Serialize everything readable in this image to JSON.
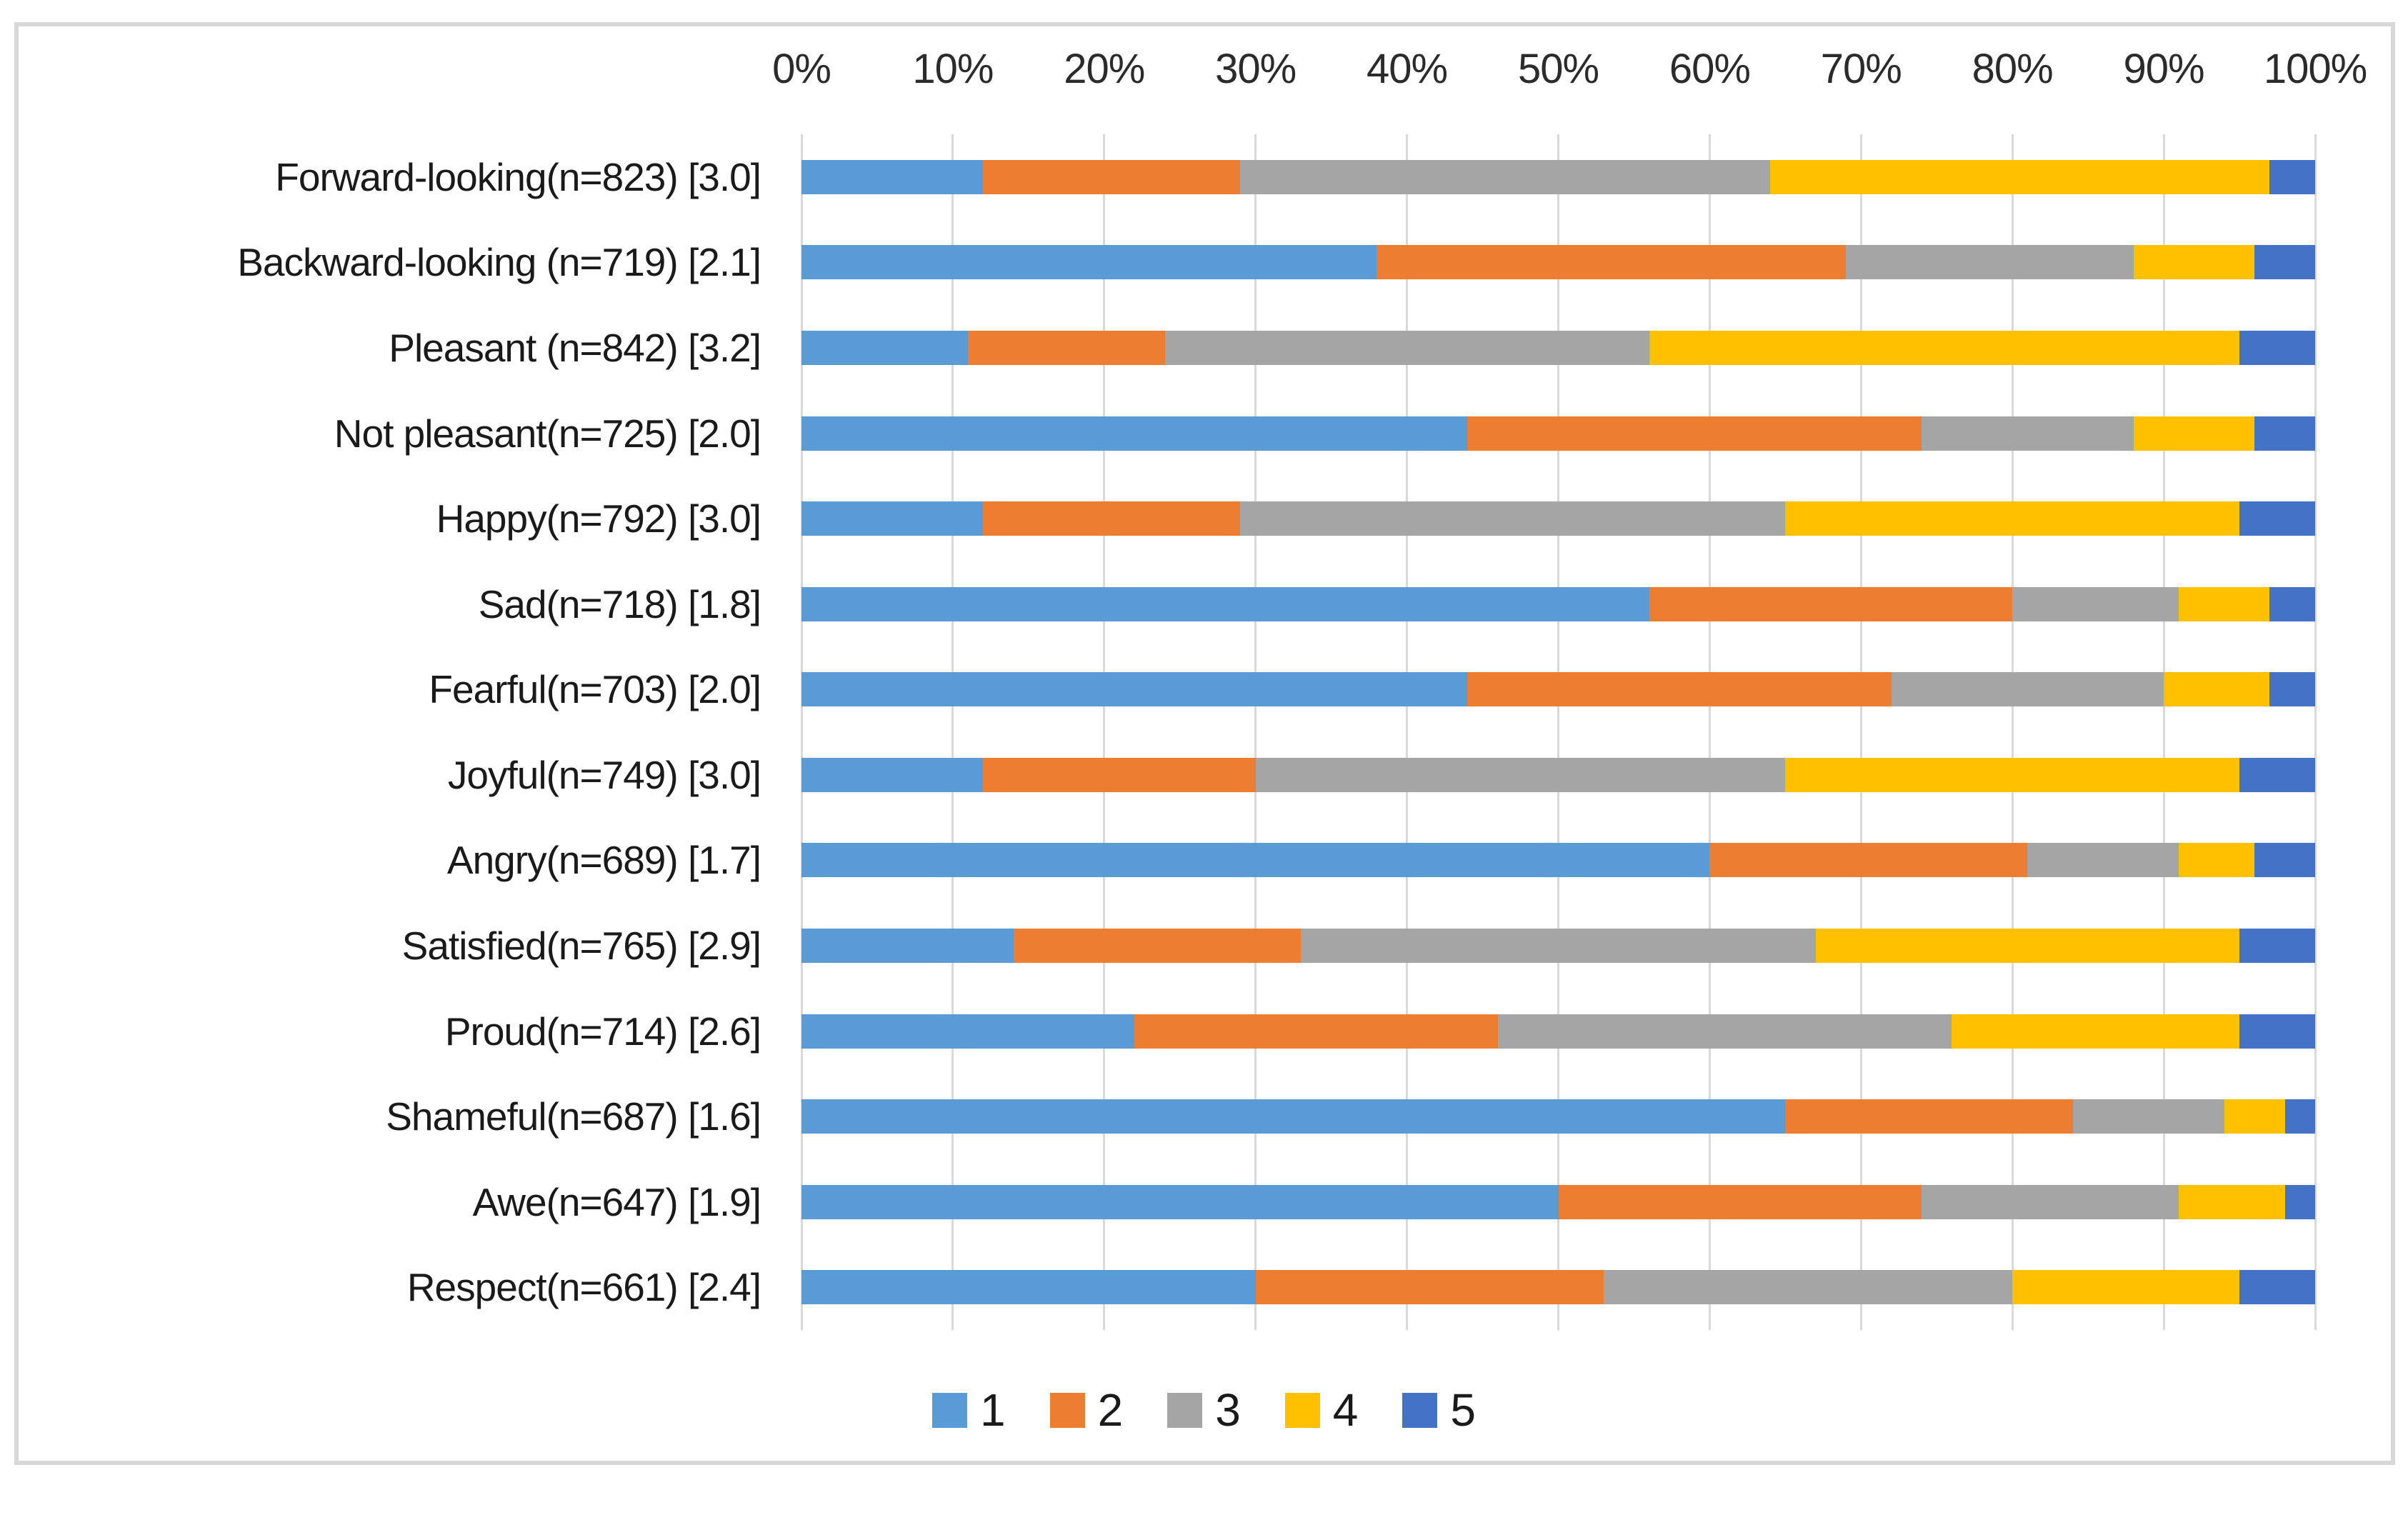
{
  "chart_data": {
    "type": "bar",
    "orientation": "horizontal",
    "stacking": "percent",
    "title": "",
    "x_axis": {
      "position": "top",
      "range": [
        0,
        100
      ],
      "tick_labels": [
        "0%",
        "10%",
        "20%",
        "30%",
        "40%",
        "50%",
        "60%",
        "70%",
        "80%",
        "90%",
        "100%"
      ]
    },
    "grid": true,
    "categories": [
      "Forward-looking(n=823) [3.0]",
      "Backward-looking (n=719) [2.1]",
      "Pleasant (n=842) [3.2]",
      "Not pleasant(n=725) [2.0]",
      "Happy(n=792) [3.0]",
      "Sad(n=718) [1.8]",
      "Fearful(n=703) [2.0]",
      "Joyful(n=749) [3.0]",
      "Angry(n=689) [1.7]",
      "Satisfied(n=765) [2.9]",
      "Proud(n=714) [2.6]",
      "Shameful(n=687) [1.6]",
      "Awe(n=647) [1.9]",
      "Respect(n=661) [2.4]"
    ],
    "series": [
      {
        "name": "1",
        "color": "#5B9BD5",
        "values": [
          12,
          38,
          11,
          44,
          12,
          56,
          44,
          12,
          60,
          14,
          22,
          65,
          50,
          30
        ]
      },
      {
        "name": "2",
        "color": "#ED7D31",
        "values": [
          17,
          31,
          13,
          30,
          17,
          24,
          28,
          18,
          21,
          19,
          24,
          19,
          24,
          23
        ]
      },
      {
        "name": "3",
        "color": "#A5A5A5",
        "values": [
          35,
          19,
          32,
          14,
          36,
          11,
          18,
          35,
          10,
          34,
          30,
          10,
          17,
          27
        ]
      },
      {
        "name": "4",
        "color": "#FFC000",
        "values": [
          33,
          8,
          39,
          8,
          30,
          6,
          7,
          30,
          5,
          28,
          19,
          4,
          7,
          15
        ]
      },
      {
        "name": "5",
        "color": "#4472C4",
        "values": [
          3,
          4,
          5,
          4,
          5,
          3,
          3,
          5,
          4,
          5,
          5,
          2,
          2,
          5
        ]
      }
    ],
    "legend": {
      "position": "bottom",
      "entries": [
        "1",
        "2",
        "3",
        "4",
        "5"
      ]
    }
  },
  "style_colors": {
    "gridline": "#D9D9D9",
    "frame_border": "#D8D8D8",
    "axis_text": "#2B2B2B",
    "label_text": "#1A1A1A",
    "background": "#FFFFFF"
  }
}
